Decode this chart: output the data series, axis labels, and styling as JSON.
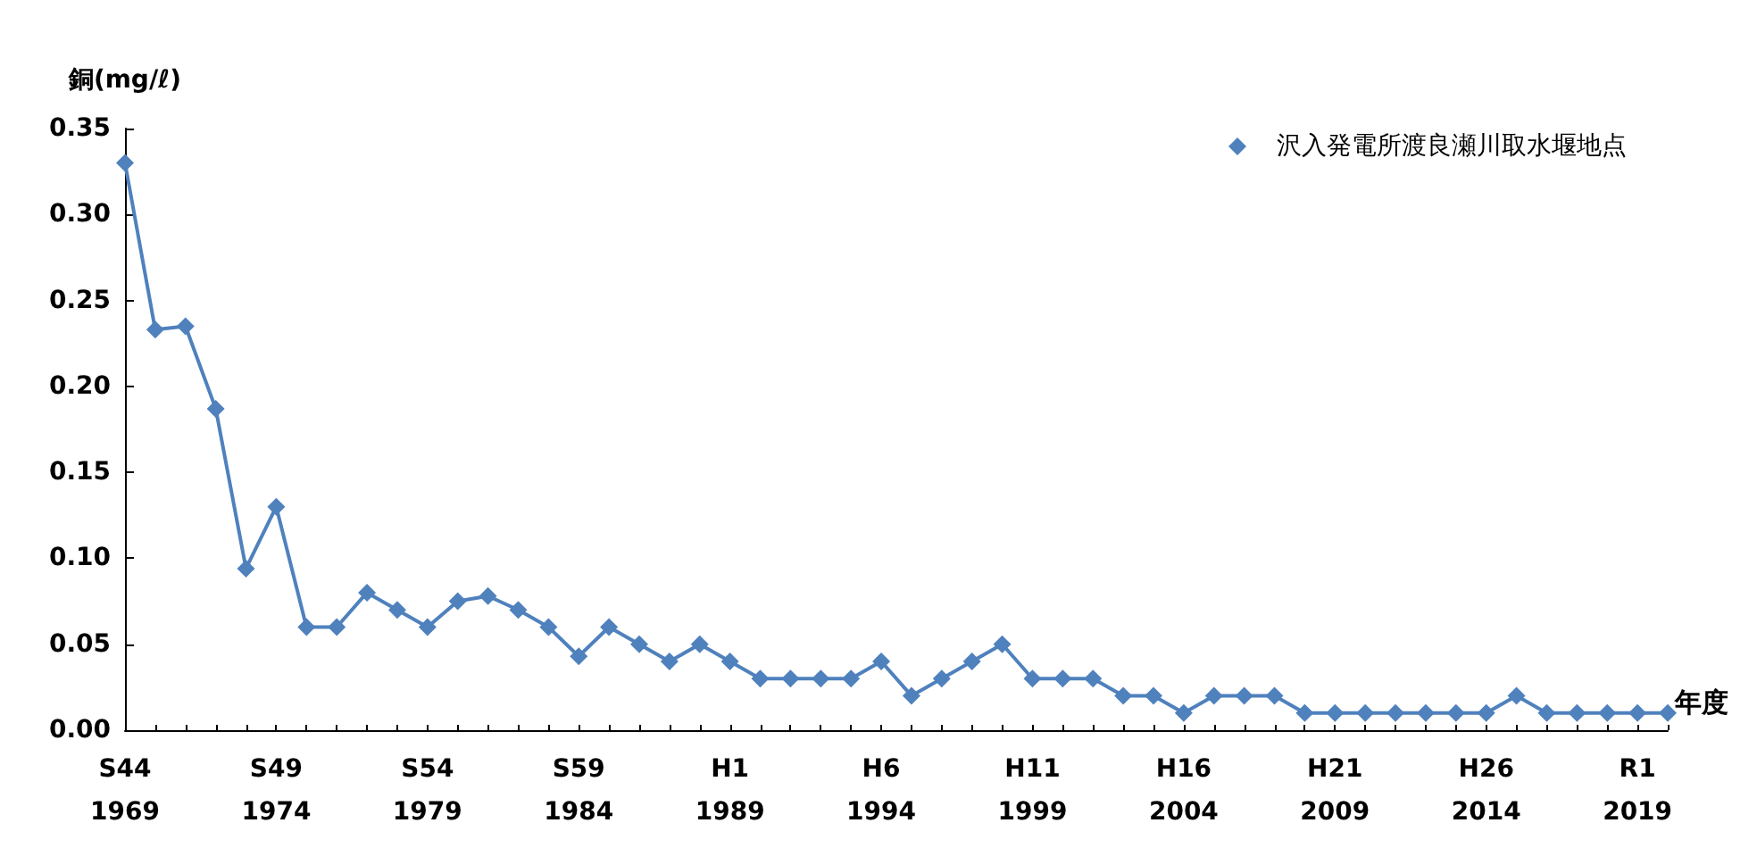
{
  "chart_data": {
    "type": "line",
    "ylabel": "銅(mg/ℓ)",
    "xlabel": "年度",
    "categories": [
      "S44\n1969",
      null,
      null,
      null,
      null,
      "S49\n1974",
      null,
      null,
      null,
      null,
      "S54\n1979",
      null,
      null,
      null,
      null,
      "S59\n1984",
      null,
      null,
      null,
      null,
      "H1\n1989",
      null,
      null,
      null,
      null,
      "H6\n1994",
      null,
      null,
      null,
      null,
      "H11\n1999",
      null,
      null,
      null,
      null,
      "H16\n2004",
      null,
      null,
      null,
      null,
      "H21\n2009",
      null,
      null,
      null,
      null,
      "H26\n2014",
      null,
      null,
      null,
      null,
      "R1\n2019",
      null
    ],
    "series": [
      {
        "name": "沢入発電所渡良瀬川取水堰地点",
        "color": "#4f81bd",
        "values": [
          0.33,
          0.233,
          0.235,
          0.187,
          0.094,
          0.13,
          0.06,
          0.06,
          0.08,
          0.07,
          0.06,
          0.075,
          0.078,
          0.07,
          0.06,
          0.043,
          0.06,
          0.05,
          0.04,
          0.05,
          0.04,
          0.03,
          0.03,
          0.03,
          0.03,
          0.04,
          0.02,
          0.03,
          0.04,
          0.05,
          0.03,
          0.03,
          0.03,
          0.02,
          0.02,
          0.01,
          0.02,
          0.02,
          0.02,
          0.01,
          0.01,
          0.01,
          0.01,
          0.01,
          0.01,
          0.01,
          0.02,
          0.01,
          0.01,
          0.01,
          0.01,
          0.01
        ]
      }
    ],
    "ylim": [
      0,
      0.35
    ],
    "yticks": [
      {
        "value": 0,
        "label": "0.00"
      },
      {
        "value": 0.05,
        "label": "0.05"
      },
      {
        "value": 0.1,
        "label": "0.10"
      },
      {
        "value": 0.15,
        "label": "0.15"
      },
      {
        "value": 0.2,
        "label": "0.20"
      },
      {
        "value": 0.25,
        "label": "0.25"
      },
      {
        "value": 0.3,
        "label": "0.30"
      },
      {
        "value": 0.35,
        "label": "0.35"
      }
    ],
    "grid": false,
    "legend": "top right",
    "marker": "diamond",
    "line_style": "solid"
  }
}
